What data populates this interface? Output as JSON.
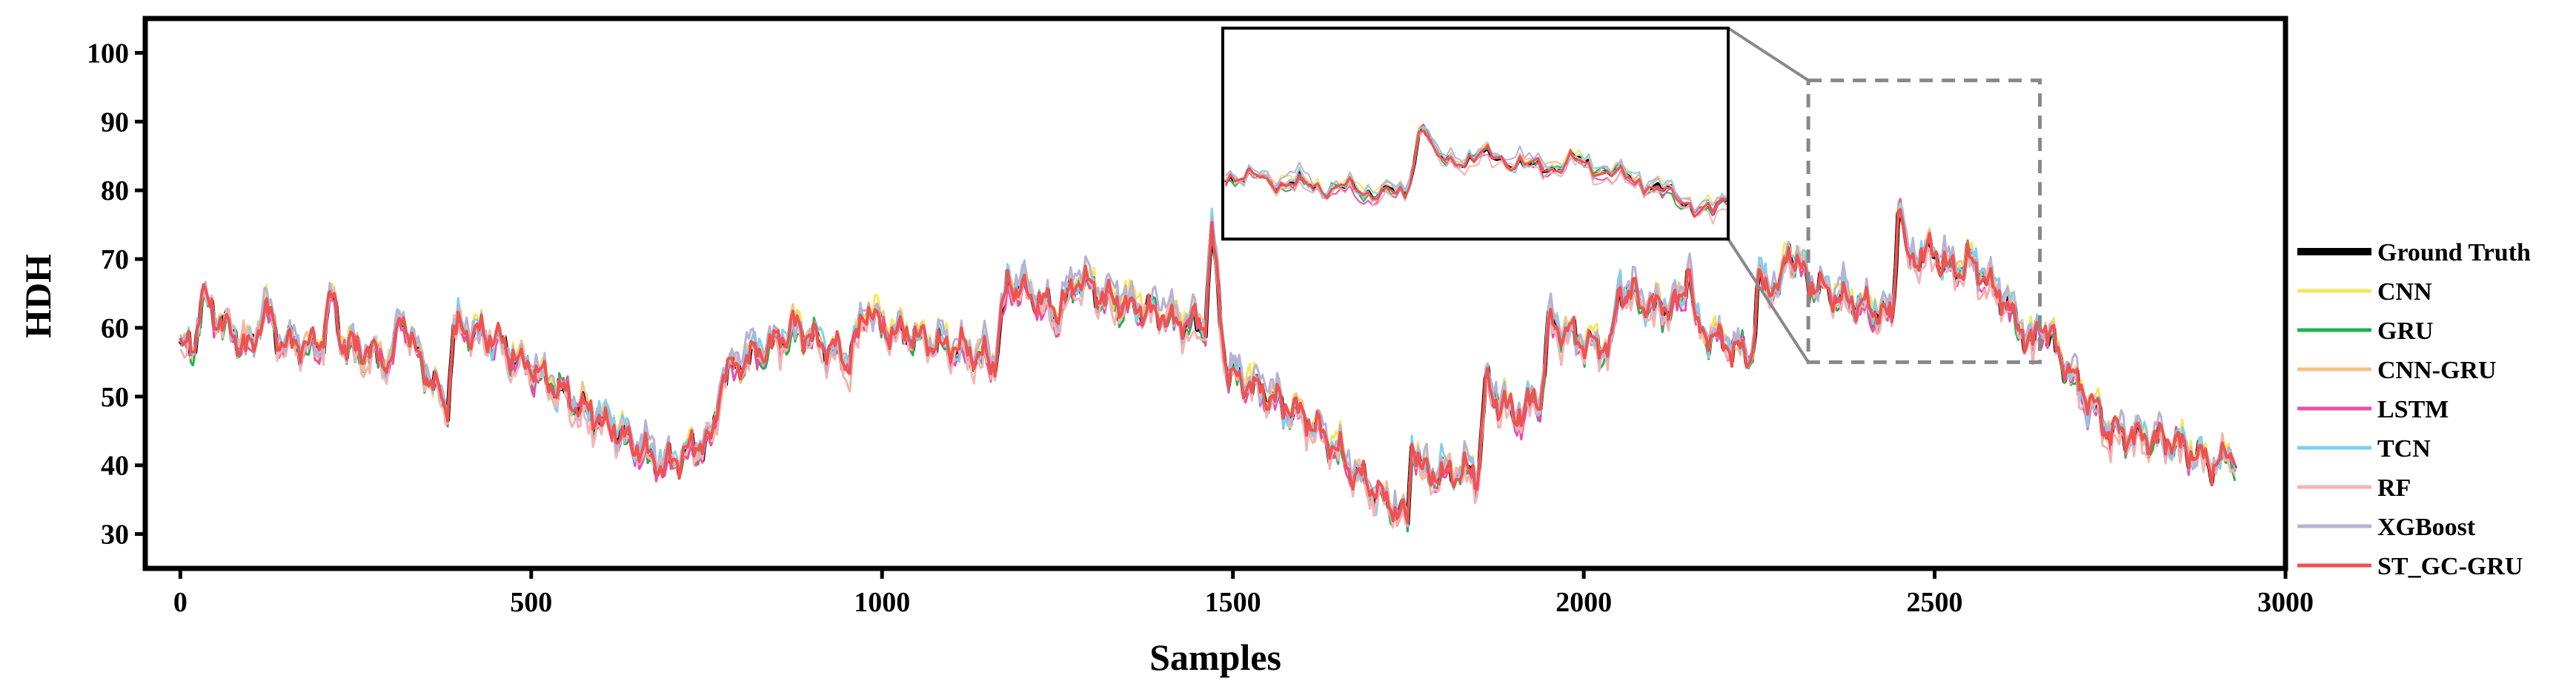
{
  "chart_data": {
    "type": "line",
    "title": "",
    "xlabel": "Samples",
    "ylabel": "HDH",
    "xlim": [
      -50,
      3000
    ],
    "ylim": [
      25,
      105
    ],
    "x_ticks": [
      0,
      500,
      1000,
      1500,
      2000,
      2500,
      3000
    ],
    "x_tick_labels": [
      "0",
      "500",
      "1000",
      "1500",
      "2000",
      "2500",
      "3000"
    ],
    "y_ticks": [
      30,
      40,
      50,
      60,
      70,
      80,
      90,
      100
    ],
    "y_tick_labels": [
      "30",
      "40",
      "50",
      "60",
      "70",
      "80",
      "90",
      "100"
    ],
    "grid": false,
    "legend_position": "right",
    "series": [
      {
        "name": "Ground Truth",
        "color": "#000000",
        "width": 6,
        "offset": 0.0,
        "noise": 0.0
      },
      {
        "name": "CNN",
        "color": "#f7e65c",
        "width": 3,
        "offset": 0.6,
        "noise": 1.2
      },
      {
        "name": "GRU",
        "color": "#22b14c",
        "width": 3,
        "offset": -0.4,
        "noise": 1.0
      },
      {
        "name": "CNN-GRU",
        "color": "#f6c187",
        "width": 3,
        "offset": 0.3,
        "noise": 1.1
      },
      {
        "name": "LSTM",
        "color": "#e94fa8",
        "width": 3,
        "offset": -0.5,
        "noise": 1.0
      },
      {
        "name": "TCN",
        "color": "#7fd0f0",
        "width": 3,
        "offset": 0.4,
        "noise": 1.2
      },
      {
        "name": "RF",
        "color": "#f4b3b3",
        "width": 3,
        "offset": -0.7,
        "noise": 1.3
      },
      {
        "name": "XGBoost",
        "color": "#b9b0d6",
        "width": 3,
        "offset": 0.8,
        "noise": 1.4
      },
      {
        "name": "ST_GC-GRU",
        "color": "#f0524f",
        "width": 4,
        "offset": 0.1,
        "noise": 0.6
      }
    ],
    "ground_truth_keypoints": {
      "x": [
        0,
        20,
        30,
        100,
        120,
        140,
        200,
        215,
        230,
        300,
        315,
        330,
        380,
        390,
        450,
        500,
        560,
        620,
        690,
        760,
        770,
        800,
        850,
        880,
        950,
        980,
        1000,
        1100,
        1160,
        1180,
        1250,
        1280,
        1320,
        1400,
        1460,
        1470,
        1490,
        1550,
        1600,
        1650,
        1700,
        1730,
        1750,
        1755,
        1770,
        1850,
        1860,
        1900,
        1940,
        1950,
        2000,
        2040,
        2050,
        2100,
        2140,
        2150,
        2160,
        2240,
        2250,
        2280,
        2290,
        2320,
        2330,
        2400,
        2440,
        2450,
        2460,
        2500,
        2520,
        2550,
        2600,
        2640,
        2650,
        2700,
        2750,
        2800,
        2850,
        2900,
        2930
      ],
      "y": [
        57,
        57,
        64,
        57,
        63,
        58,
        57,
        65,
        58,
        55,
        62,
        58,
        48,
        60,
        58,
        54,
        49,
        45,
        40,
        44,
        53,
        55,
        58,
        60,
        55,
        63,
        60,
        57,
        55,
        67,
        62,
        67,
        64,
        62,
        60,
        74,
        54,
        50,
        47,
        42,
        36,
        34,
        32,
        44,
        39,
        39,
        52,
        47,
        50,
        61,
        58,
        57,
        66,
        63,
        64,
        70,
        60,
        56,
        67,
        65,
        72,
        67,
        66,
        63,
        62,
        80,
        70,
        71,
        68,
        70,
        64,
        57,
        61,
        52,
        45,
        44,
        43,
        40,
        42
      ]
    },
    "inset": {
      "x_range": [
        2320,
        2650
      ],
      "y_range": [
        55,
        96
      ]
    }
  }
}
